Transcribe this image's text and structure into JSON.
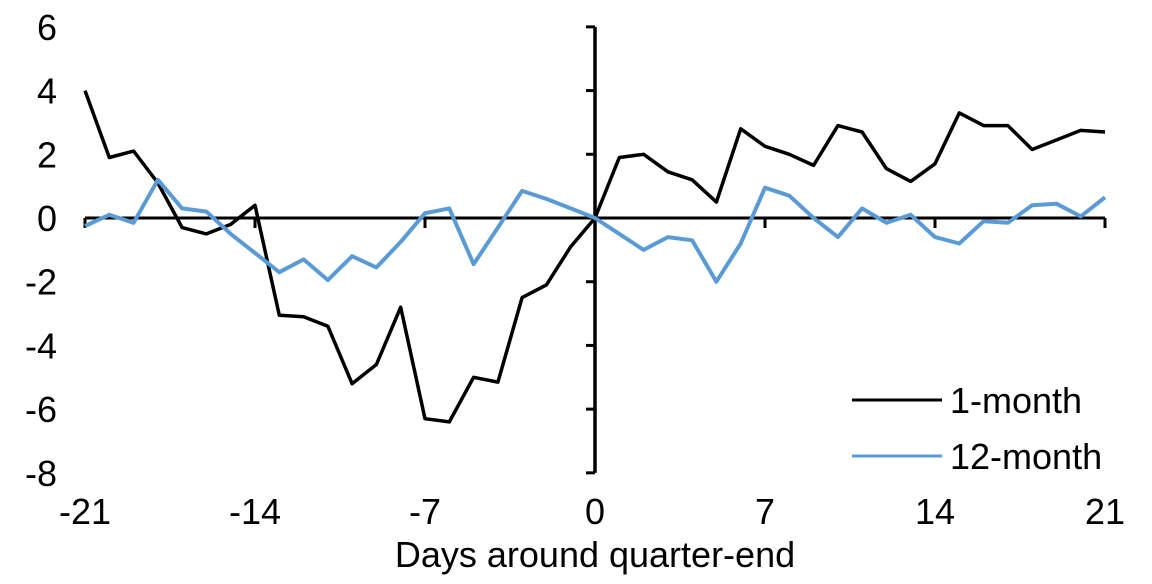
{
  "chart_data": {
    "type": "line",
    "xlabel": "Days around quarter-end",
    "ylabel": "",
    "title": "",
    "xlim": [
      -21,
      21
    ],
    "ylim": [
      -8,
      6
    ],
    "x_ticks": [
      -21,
      -14,
      -7,
      0,
      7,
      14,
      21
    ],
    "y_ticks": [
      6,
      4,
      2,
      0,
      -2,
      -4,
      -6,
      -8
    ],
    "grid": false,
    "axis_cross": "zero",
    "legend_position": "lower-right",
    "background_color": "#ffffff",
    "axis_color": "#000000",
    "x": [
      -21,
      -20,
      -19,
      -18,
      -17,
      -16,
      -15,
      -14,
      -13,
      -12,
      -11,
      -10,
      -9,
      -8,
      -7,
      -6,
      -5,
      -4,
      -3,
      -2,
      -1,
      0,
      1,
      2,
      3,
      4,
      5,
      6,
      7,
      8,
      9,
      10,
      11,
      12,
      13,
      14,
      15,
      16,
      17,
      18,
      19,
      20,
      21
    ],
    "series": [
      {
        "name": "1-month",
        "color": "#000000",
        "values": [
          4.0,
          1.9,
          2.1,
          1.1,
          -0.3,
          -0.5,
          -0.2,
          0.4,
          -3.05,
          -3.1,
          -3.4,
          -5.2,
          -4.6,
          -2.8,
          -6.3,
          -6.4,
          -5.0,
          -5.15,
          -2.5,
          -2.1,
          -0.9,
          0.0,
          1.9,
          2.0,
          1.45,
          1.2,
          0.5,
          2.8,
          2.25,
          2.0,
          1.65,
          2.9,
          2.7,
          1.55,
          1.15,
          1.7,
          3.3,
          2.9,
          2.9,
          2.15,
          2.45,
          2.75,
          2.7
        ]
      },
      {
        "name": "12-month",
        "color": "#5B9BD5",
        "values": [
          -0.25,
          0.1,
          -0.15,
          1.2,
          0.3,
          0.2,
          -0.5,
          -1.1,
          -1.7,
          -1.3,
          -1.95,
          -1.2,
          -1.55,
          -0.75,
          0.15,
          0.3,
          -1.45,
          -0.3,
          0.85,
          0.6,
          0.3,
          0.0,
          -0.5,
          -1.0,
          -0.6,
          -0.7,
          -2.0,
          -0.8,
          0.95,
          0.7,
          0.0,
          -0.6,
          0.3,
          -0.15,
          0.1,
          -0.6,
          -0.8,
          -0.1,
          -0.15,
          0.4,
          0.45,
          0.05,
          0.65
        ]
      }
    ]
  },
  "legend": {
    "items": [
      {
        "label": "1-month"
      },
      {
        "label": "12-month"
      }
    ]
  }
}
